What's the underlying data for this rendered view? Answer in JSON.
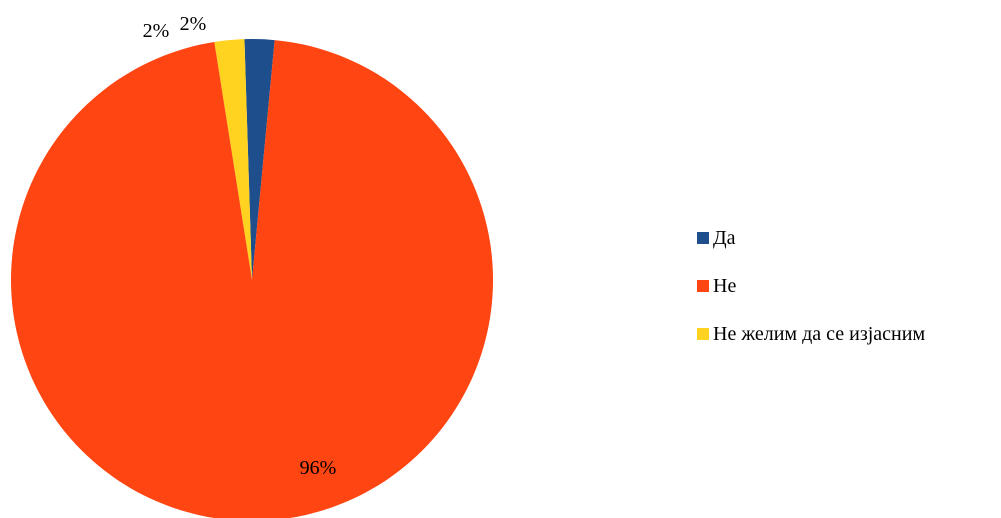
{
  "chart_data": {
    "type": "pie",
    "categories": [
      "Да",
      "Не",
      "Не желим да се изјасним"
    ],
    "values": [
      2,
      96,
      2
    ],
    "data_labels": [
      "2%",
      "96%",
      "2%"
    ],
    "colors": [
      "#1F4E8C",
      "#FF4512",
      "#FFD320"
    ],
    "title": "",
    "legend_position": "right"
  },
  "legend": {
    "items": [
      {
        "label": "Да",
        "color": "#1F4E8C"
      },
      {
        "label": "Не",
        "color": "#FF4512"
      },
      {
        "label": "Не желим да се изјасним",
        "color": "#FFD320"
      }
    ]
  }
}
